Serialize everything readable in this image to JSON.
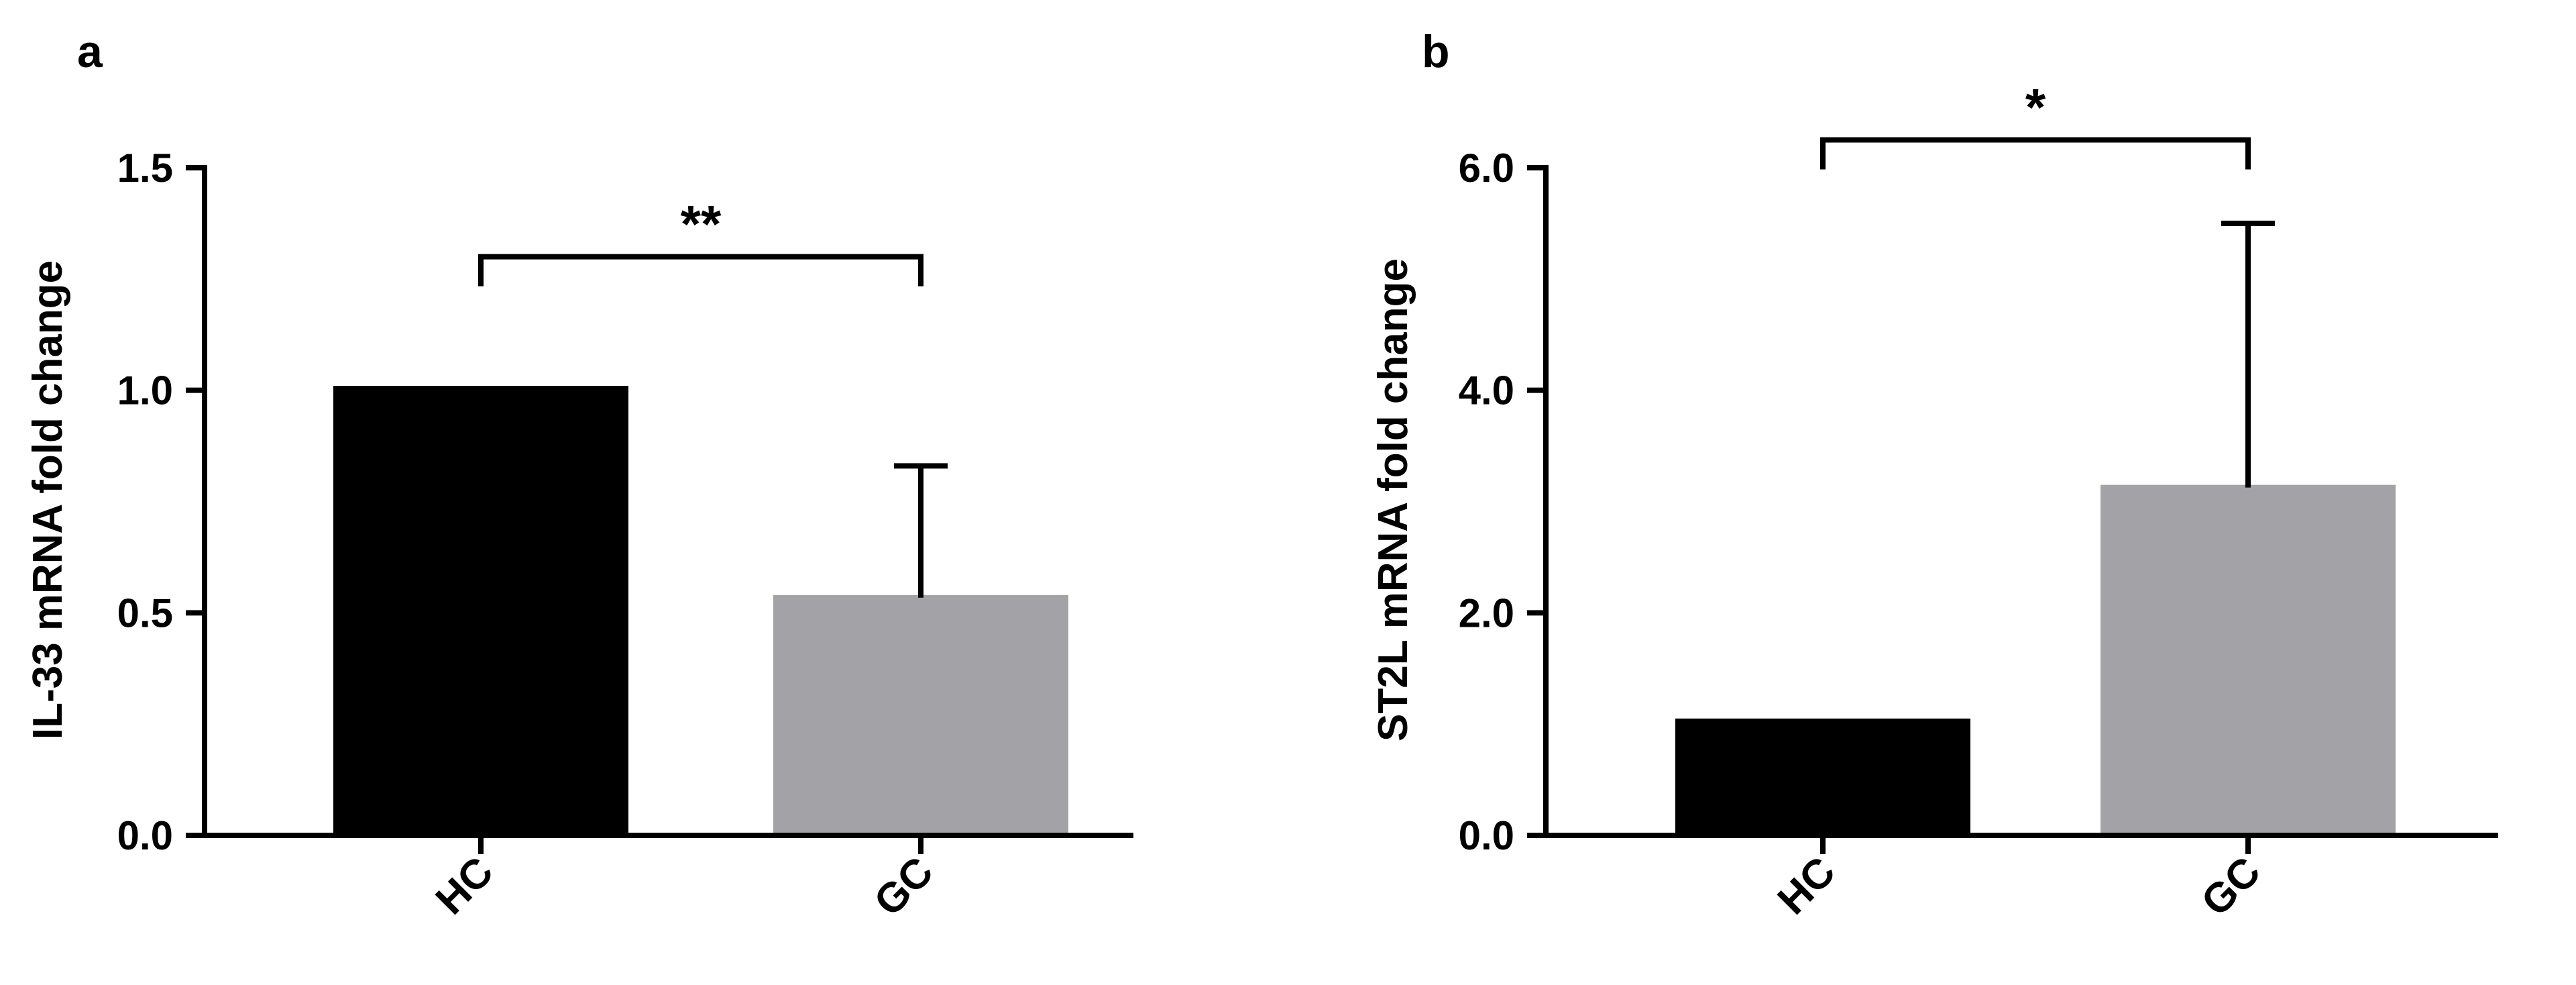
{
  "panels": [
    {
      "label": "a"
    },
    {
      "label": "b"
    }
  ],
  "colors": {
    "hc_bar": "#000000",
    "gc_bar": "#a3a2a7",
    "axis": "#000000"
  },
  "chart_data": [
    {
      "type": "bar",
      "panel": "a",
      "categories": [
        "HC",
        "GC"
      ],
      "values": [
        1.01,
        0.54
      ],
      "error_upper": [
        null,
        0.83
      ],
      "ylabel": "IL-33 mRNA fold change",
      "xlabel": "",
      "ylim": [
        0,
        1.5
      ],
      "yticks": [
        0.0,
        0.5,
        1.0,
        1.5
      ],
      "ytick_labels": [
        "0.0",
        "0.5",
        "1.0",
        "1.5"
      ],
      "significance": {
        "between": [
          "HC",
          "GC"
        ],
        "label": "**",
        "y": 1.3
      },
      "bar_colors": [
        "#000000",
        "#a3a2a7"
      ],
      "grid": false,
      "legend": "none"
    },
    {
      "type": "bar",
      "panel": "b",
      "categories": [
        "HC",
        "GC"
      ],
      "values": [
        1.05,
        3.15
      ],
      "error_upper": [
        null,
        5.5
      ],
      "ylabel": "ST2L mRNA fold change",
      "xlabel": "",
      "ylim": [
        0,
        6.0
      ],
      "yticks": [
        0.0,
        2.0,
        4.0,
        6.0
      ],
      "ytick_labels": [
        "0.0",
        "2.0",
        "4.0",
        "6.0"
      ],
      "significance": {
        "between": [
          "HC",
          "GC"
        ],
        "label": "*",
        "y": 6.25
      },
      "bar_colors": [
        "#000000",
        "#a3a2a7"
      ],
      "grid": false,
      "legend": "none"
    }
  ]
}
